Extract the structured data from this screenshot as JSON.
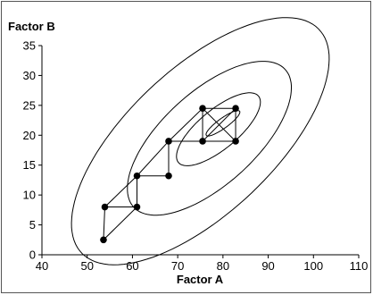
{
  "chart_data": {
    "type": "scatter",
    "title": "",
    "xlabel": "Factor A",
    "ylabel": "Factor B",
    "xlim": [
      40,
      110
    ],
    "ylim": [
      0,
      35
    ],
    "xticks": [
      "40",
      "50",
      "60",
      "70",
      "80",
      "90",
      "100",
      "110"
    ],
    "yticks": [
      "0",
      "5",
      "10",
      "15",
      "20",
      "25",
      "30",
      "35"
    ],
    "grid": false,
    "contours": [
      {
        "level": 1,
        "center": [
          80,
          22
        ],
        "semi_major": 4.2,
        "semi_minor": 0.9,
        "angle_deg": 28
      },
      {
        "level": 2,
        "center": [
          79,
          21
        ],
        "semi_major": 10.5,
        "semi_minor": 3.6,
        "angle_deg": 30
      },
      {
        "level": 3,
        "center": [
          77,
          19.5
        ],
        "semi_major": 20.5,
        "semi_minor": 8.6,
        "angle_deg": 31
      },
      {
        "level": 4,
        "center": [
          75,
          19
        ],
        "semi_major": 32.5,
        "semi_minor": 13.5,
        "angle_deg": 32
      }
    ],
    "points": [
      {
        "x": 53.6,
        "y": 2.5
      },
      {
        "x": 53.9,
        "y": 8.0
      },
      {
        "x": 61.0,
        "y": 8.0
      },
      {
        "x": 61.0,
        "y": 13.2
      },
      {
        "x": 68.0,
        "y": 13.2
      },
      {
        "x": 68.0,
        "y": 19.0
      },
      {
        "x": 75.5,
        "y": 19.0
      },
      {
        "x": 75.5,
        "y": 24.5
      },
      {
        "x": 82.8,
        "y": 24.5
      },
      {
        "x": 82.8,
        "y": 19.0
      }
    ],
    "path_segments": [
      [
        [
          53.6,
          2.5
        ],
        [
          53.9,
          8.0
        ]
      ],
      [
        [
          53.9,
          8.0
        ],
        [
          61.0,
          8.0
        ]
      ],
      [
        [
          61.0,
          8.0
        ],
        [
          61.0,
          13.2
        ]
      ],
      [
        [
          53.6,
          2.5
        ],
        [
          61.0,
          8.0
        ]
      ],
      [
        [
          53.9,
          8.0
        ],
        [
          61.0,
          13.2
        ]
      ],
      [
        [
          61.0,
          13.2
        ],
        [
          68.0,
          13.2
        ]
      ],
      [
        [
          68.0,
          13.2
        ],
        [
          68.0,
          19.0
        ]
      ],
      [
        [
          61.0,
          13.2
        ],
        [
          68.0,
          19.0
        ]
      ],
      [
        [
          68.0,
          19.0
        ],
        [
          75.5,
          19.0
        ]
      ],
      [
        [
          75.5,
          19.0
        ],
        [
          75.5,
          24.5
        ]
      ],
      [
        [
          68.0,
          19.0
        ],
        [
          75.5,
          24.5
        ]
      ],
      [
        [
          75.5,
          24.5
        ],
        [
          82.8,
          24.5
        ]
      ],
      [
        [
          82.8,
          24.5
        ],
        [
          82.8,
          19.0
        ]
      ],
      [
        [
          75.5,
          19.0
        ],
        [
          82.8,
          19.0
        ]
      ],
      [
        [
          75.5,
          19.0
        ],
        [
          82.8,
          24.5
        ]
      ],
      [
        [
          75.5,
          24.5
        ],
        [
          82.8,
          19.0
        ]
      ]
    ]
  }
}
